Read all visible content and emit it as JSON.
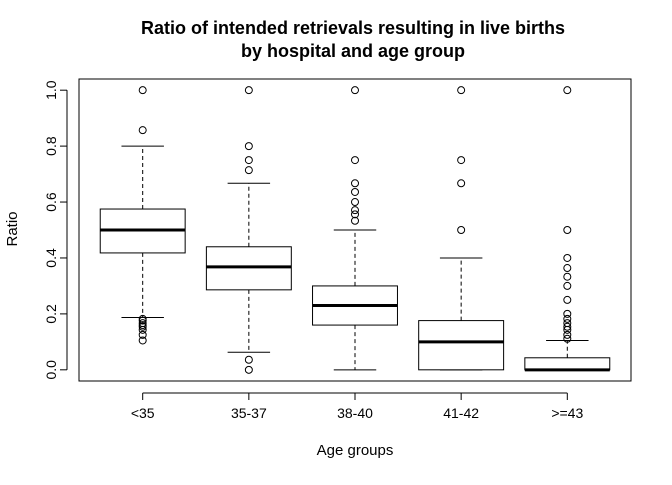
{
  "chart_data": {
    "type": "boxplot",
    "title": "Ratio of intended retrievals resulting in live births",
    "subtitle": "by hospital and age group",
    "xlabel": "Age groups",
    "ylabel": "Ratio",
    "ylim": [
      -0.04,
      1.04
    ],
    "yticks": [
      0.0,
      0.2,
      0.4,
      0.6,
      0.8,
      1.0
    ],
    "ytick_labels": [
      "0.0",
      "0.2",
      "0.4",
      "0.6",
      "0.8",
      "1.0"
    ],
    "grid": false,
    "categories": [
      "<35",
      "35-37",
      "38-40",
      "41-42",
      ">=43"
    ],
    "boxes": [
      {
        "category": "<35",
        "whisker_low": 0.187,
        "q1": 0.418,
        "median": 0.5,
        "q3": 0.575,
        "whisker_high": 0.8,
        "outliers": [
          1.0,
          0.857,
          0.182,
          0.176,
          0.167,
          0.16,
          0.154,
          0.143,
          0.125,
          0.105
        ]
      },
      {
        "category": "35-37",
        "whisker_low": 0.063,
        "q1": 0.286,
        "median": 0.368,
        "q3": 0.44,
        "whisker_high": 0.667,
        "outliers": [
          1.0,
          0.8,
          0.75,
          0.714,
          0.036,
          0.0
        ]
      },
      {
        "category": "38-40",
        "whisker_low": 0.0,
        "q1": 0.16,
        "median": 0.23,
        "q3": 0.3,
        "whisker_high": 0.5,
        "outliers": [
          1.0,
          0.75,
          0.667,
          0.636,
          0.6,
          0.571,
          0.556,
          0.533
        ]
      },
      {
        "category": "41-42",
        "whisker_low": 0.0,
        "q1": 0.0,
        "median": 0.1,
        "q3": 0.176,
        "whisker_high": 0.4,
        "outliers": [
          1.0,
          0.75,
          0.667,
          0.5
        ]
      },
      {
        "category": ">=43",
        "whisker_low": 0.0,
        "q1": 0.0,
        "median": 0.0,
        "q3": 0.043,
        "whisker_high": 0.105,
        "outliers": [
          1.0,
          0.5,
          0.4,
          0.364,
          0.333,
          0.3,
          0.25,
          0.2,
          0.182,
          0.167,
          0.154,
          0.143,
          0.125,
          0.111
        ]
      }
    ]
  }
}
